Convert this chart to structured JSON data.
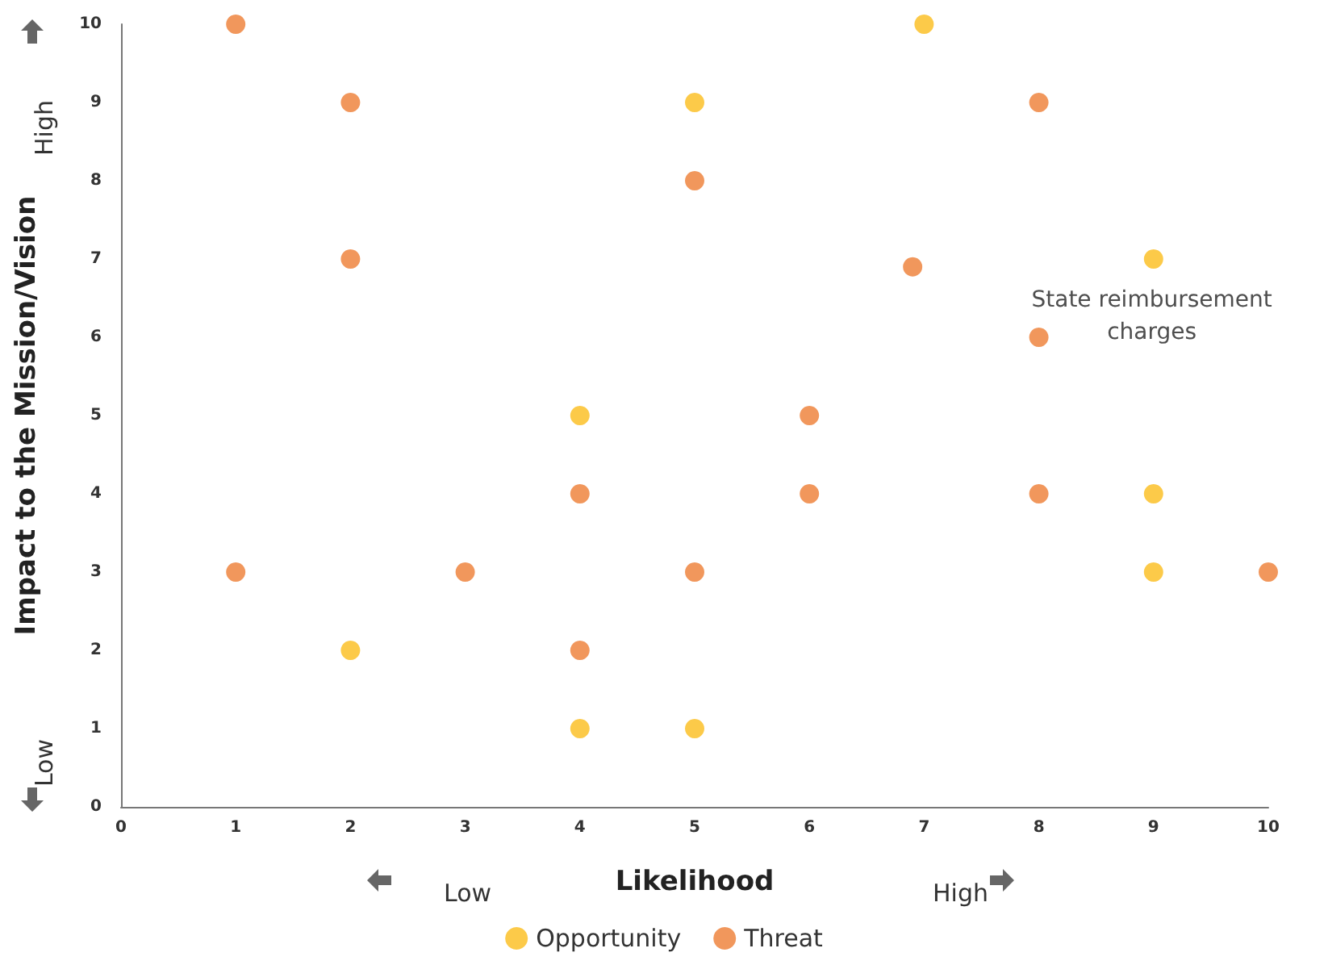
{
  "chart_data": {
    "type": "scatter",
    "xlabel": "Likelihood",
    "ylabel": "Impact to the Mission/Vision",
    "xlim": [
      0,
      10
    ],
    "ylim": [
      0,
      10
    ],
    "xticks": [
      0,
      1,
      2,
      3,
      4,
      5,
      6,
      7,
      8,
      9,
      10
    ],
    "yticks": [
      0,
      1,
      2,
      3,
      4,
      5,
      6,
      7,
      8,
      9,
      10
    ],
    "grid": false,
    "legend": "bottom",
    "marker": "circle",
    "series": [
      {
        "name": "Opportunity",
        "color": "#fbbd1b",
        "x": [
          7,
          5,
          9,
          4,
          9,
          9,
          2,
          4,
          5
        ],
        "values": [
          10,
          9,
          7,
          5,
          4,
          3,
          2,
          1,
          1
        ]
      },
      {
        "name": "Threat",
        "color": "#ee7d33",
        "x": [
          1,
          2,
          8,
          5,
          2,
          6.9,
          8,
          6,
          4,
          6,
          8,
          1,
          3,
          5,
          10,
          4
        ],
        "values": [
          10,
          9,
          9,
          8,
          7,
          6.9,
          6,
          5,
          4,
          4,
          4,
          3,
          3,
          3,
          3,
          2
        ]
      }
    ],
    "annotations": [
      {
        "text": "State reimbursement charges",
        "x": 8,
        "y": 6
      },
      "High",
      "Low",
      "Low",
      "High"
    ]
  }
}
